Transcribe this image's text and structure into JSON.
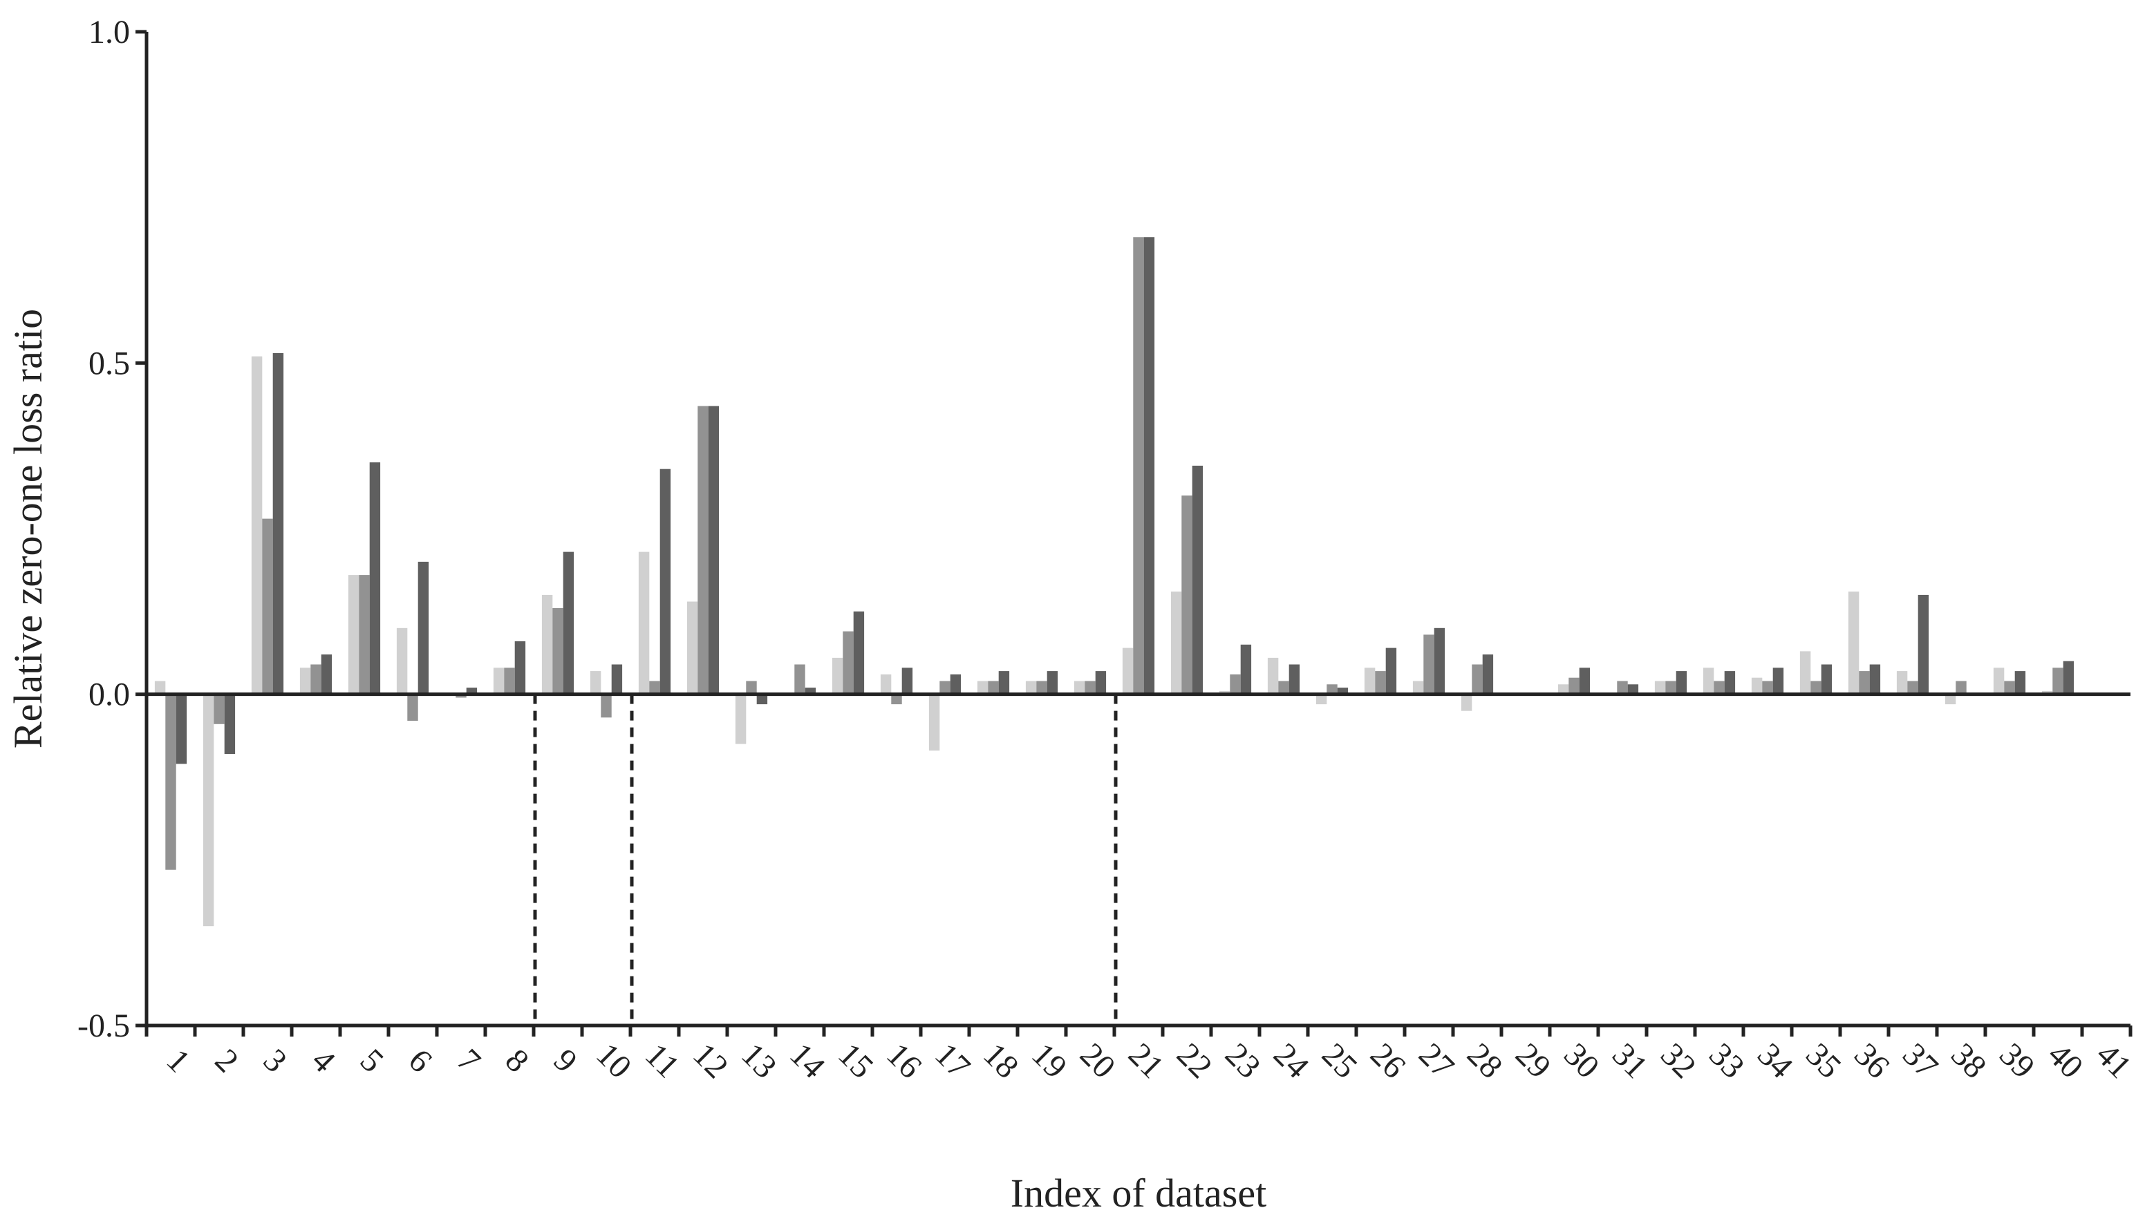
{
  "chart_data": {
    "type": "bar",
    "title": "",
    "xlabel": "Index of dataset",
    "ylabel": "Relative zero-one loss ratio",
    "ylim": [
      -0.5,
      1.0
    ],
    "yticks": [
      -0.5,
      0.0,
      0.5,
      1.0
    ],
    "ytick_labels": [
      "-0.5",
      "0.0",
      "0.5",
      "1.0"
    ],
    "categories": [
      "1",
      "2",
      "3",
      "4",
      "5",
      "6",
      "7",
      "8",
      "9",
      "10",
      "11",
      "12",
      "13",
      "14",
      "15",
      "16",
      "17",
      "18",
      "19",
      "20",
      "21",
      "22",
      "23",
      "24",
      "25",
      "26",
      "27",
      "28",
      "29",
      "30",
      "31",
      "32",
      "33",
      "34",
      "35",
      "36",
      "37",
      "38",
      "39",
      "40",
      "41"
    ],
    "series": [
      {
        "color": "#d0d0d0",
        "values": [
          0.02,
          -0.35,
          0.51,
          0.04,
          0.18,
          0.1,
          0.0,
          0.04,
          0.15,
          0.035,
          0.215,
          0.14,
          -0.075,
          0.0,
          0.055,
          0.03,
          -0.085,
          0.02,
          0.02,
          0.02,
          0.07,
          0.155,
          0.005,
          0.055,
          -0.015,
          0.04,
          0.02,
          -0.025,
          0.0,
          0.015,
          0.0,
          0.02,
          0.04,
          0.025,
          0.065,
          0.155,
          0.035,
          -0.015,
          0.04,
          0.005,
          0.0
        ]
      },
      {
        "color": "#929292",
        "values": [
          -0.265,
          -0.045,
          0.265,
          0.045,
          0.18,
          -0.04,
          -0.005,
          0.04,
          0.13,
          -0.035,
          0.02,
          0.435,
          0.02,
          0.045,
          0.095,
          -0.015,
          0.02,
          0.02,
          0.02,
          0.02,
          0.69,
          0.3,
          0.03,
          0.02,
          0.015,
          0.035,
          0.09,
          0.045,
          0.0,
          0.025,
          0.02,
          0.02,
          0.02,
          0.02,
          0.02,
          0.035,
          0.02,
          0.02,
          0.02,
          0.04,
          0.0
        ]
      },
      {
        "color": "#5f5f5f",
        "values": [
          -0.105,
          -0.09,
          0.515,
          0.06,
          0.35,
          0.2,
          0.01,
          0.08,
          0.215,
          0.045,
          0.34,
          0.435,
          -0.015,
          0.01,
          0.125,
          0.04,
          0.03,
          0.035,
          0.035,
          0.035,
          0.69,
          0.345,
          0.075,
          0.045,
          0.01,
          0.07,
          0.1,
          0.06,
          0.0,
          0.04,
          0.015,
          0.035,
          0.035,
          0.04,
          0.045,
          0.045,
          0.15,
          0.0,
          0.035,
          0.05,
          0.0
        ]
      }
    ],
    "reference_lines_at_categories": [
      "9",
      "11",
      "21"
    ],
    "grid": false,
    "legend": "none"
  }
}
